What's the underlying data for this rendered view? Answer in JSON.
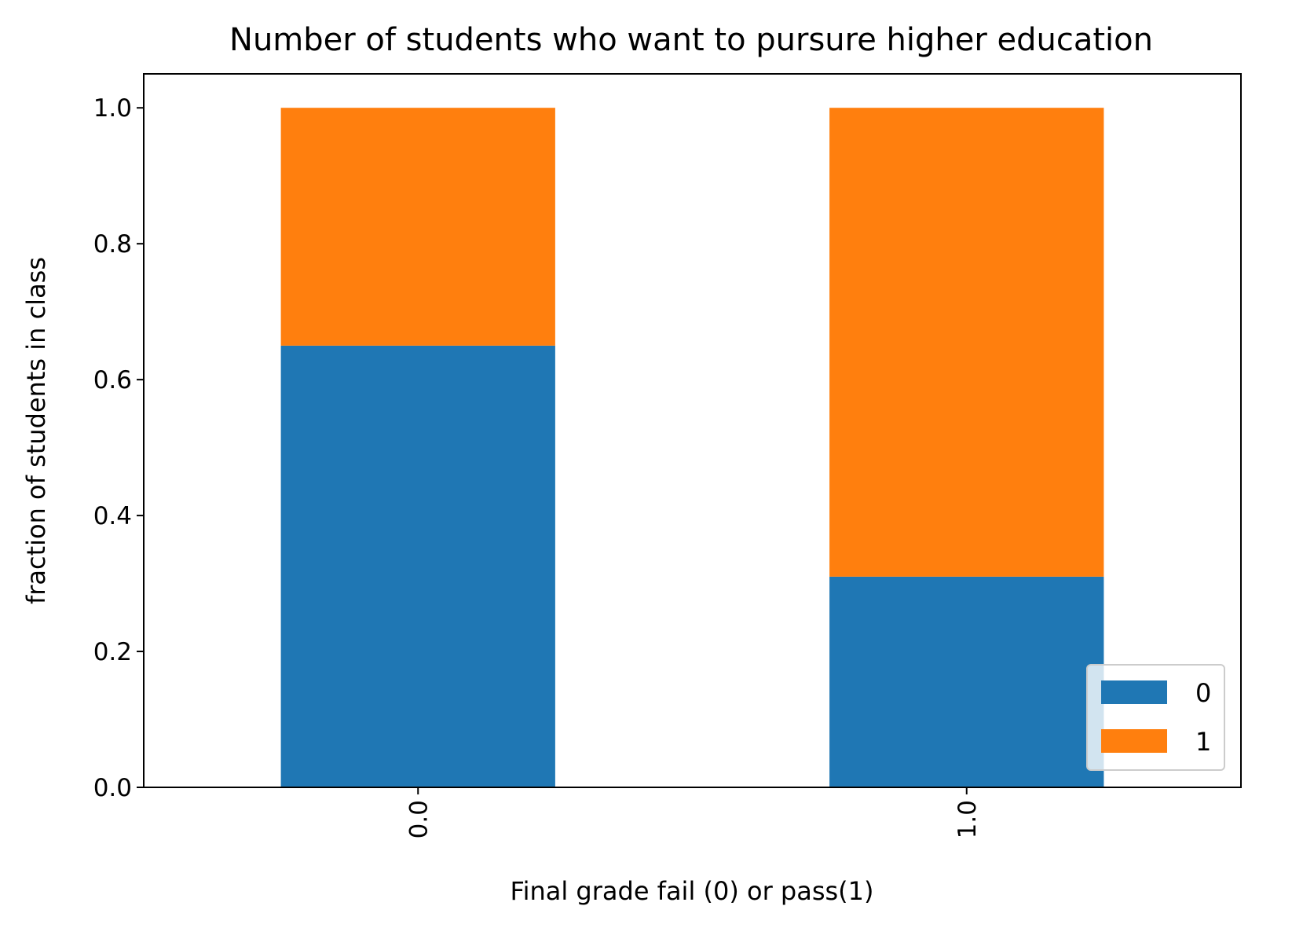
{
  "chart_data": {
    "type": "bar",
    "stacked": true,
    "title": "Number of students who want to pursure higher education",
    "xlabel": "Final grade fail (0) or pass(1)",
    "ylabel": "fraction of students in class",
    "categories": [
      "0.0",
      "1.0"
    ],
    "series": [
      {
        "name": "0",
        "color": "#1f77b4",
        "values": [
          0.65,
          0.31
        ]
      },
      {
        "name": "1",
        "color": "#ff7f0e",
        "values": [
          0.35,
          0.69
        ]
      }
    ],
    "ylim": [
      0,
      1.05
    ],
    "yticks": [
      "0.0",
      "0.2",
      "0.4",
      "0.6",
      "0.8",
      "1.0"
    ],
    "ytick_values": [
      0,
      0.2,
      0.4,
      0.6,
      0.8,
      1.0
    ],
    "grid": false,
    "legend_position": "lower-right",
    "xtick_rotation": "vertical"
  }
}
